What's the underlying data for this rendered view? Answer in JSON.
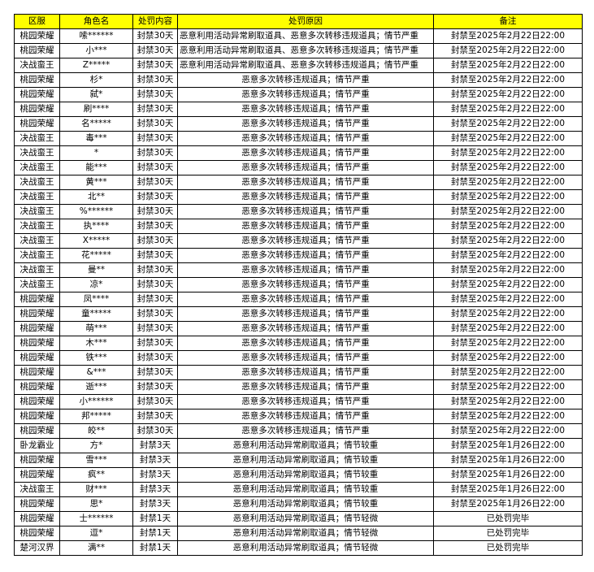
{
  "header_color": "#ffff00",
  "columns": [
    "区服",
    "角色名",
    "处罚内容",
    "处罚原因",
    "备注"
  ],
  "rows": [
    [
      "桃园荣耀",
      "嗦******",
      "封禁30天",
      "恶意利用活动异常刷取道具、恶意多次转移违规道具；情节严重",
      "封禁至2025年2月22日22:00"
    ],
    [
      "桃园荣耀",
      "小***",
      "封禁30天",
      "恶意利用活动异常刷取道具、恶意多次转移违规道具；情节严重",
      "封禁至2025年2月22日22:00"
    ],
    [
      "决战蛮王",
      "Z*****",
      "封禁30天",
      "恶意利用活动异常刷取道具、恶意多次转移违规道具；情节严重",
      "封禁至2025年2月22日22:00"
    ],
    [
      "桃园荣耀",
      "杉*",
      "封禁30天",
      "恶意多次转移违规道具；情节严重",
      "封禁至2025年2月22日22:00"
    ],
    [
      "桃园荣耀",
      "弑*",
      "封禁30天",
      "恶意多次转移违规道具；情节严重",
      "封禁至2025年2月22日22:00"
    ],
    [
      "桃园荣耀",
      "刷****",
      "封禁30天",
      "恶意多次转移违规道具；情节严重",
      "封禁至2025年2月22日22:00"
    ],
    [
      "桃园荣耀",
      "名*****",
      "封禁30天",
      "恶意多次转移违规道具；情节严重",
      "封禁至2025年2月22日22:00"
    ],
    [
      "决战蛮王",
      "毒***",
      "封禁30天",
      "恶意多次转移违规道具；情节严重",
      "封禁至2025年2月22日22:00"
    ],
    [
      "决战蛮王",
      "*",
      "封禁30天",
      "恶意多次转移违规道具；情节严重",
      "封禁至2025年2月22日22:00"
    ],
    [
      "决战蛮王",
      "能***",
      "封禁30天",
      "恶意多次转移违规道具；情节严重",
      "封禁至2025年2月22日22:00"
    ],
    [
      "决战蛮王",
      "黄***",
      "封禁30天",
      "恶意多次转移违规道具；情节严重",
      "封禁至2025年2月22日22:00"
    ],
    [
      "决战蛮王",
      "北**",
      "封禁30天",
      "恶意多次转移违规道具；情节严重",
      "封禁至2025年2月22日22:00"
    ],
    [
      "决战蛮王",
      "%******",
      "封禁30天",
      "恶意多次转移违规道具；情节严重",
      "封禁至2025年2月22日22:00"
    ],
    [
      "决战蛮王",
      "执****",
      "封禁30天",
      "恶意多次转移违规道具；情节严重",
      "封禁至2025年2月22日22:00"
    ],
    [
      "决战蛮王",
      "X*****",
      "封禁30天",
      "恶意多次转移违规道具；情节严重",
      "封禁至2025年2月22日22:00"
    ],
    [
      "决战蛮王",
      "花*****",
      "封禁30天",
      "恶意多次转移违规道具；情节严重",
      "封禁至2025年2月22日22:00"
    ],
    [
      "决战蛮王",
      "曼**",
      "封禁30天",
      "恶意多次转移违规道具；情节严重",
      "封禁至2025年2月22日22:00"
    ],
    [
      "决战蛮王",
      "凉*",
      "封禁30天",
      "恶意多次转移违规道具；情节严重",
      "封禁至2025年2月22日22:00"
    ],
    [
      "桃园荣耀",
      "凤****",
      "封禁30天",
      "恶意多次转移违规道具；情节严重",
      "封禁至2025年2月22日22:00"
    ],
    [
      "桃园荣耀",
      "童*****",
      "封禁30天",
      "恶意多次转移违规道具；情节严重",
      "封禁至2025年2月22日22:00"
    ],
    [
      "桃园荣耀",
      "萌***",
      "封禁30天",
      "恶意多次转移违规道具；情节严重",
      "封禁至2025年2月22日22:00"
    ],
    [
      "桃园荣耀",
      "木***",
      "封禁30天",
      "恶意多次转移违规道具；情节严重",
      "封禁至2025年2月22日22:00"
    ],
    [
      "桃园荣耀",
      "铁***",
      "封禁30天",
      "恶意多次转移违规道具；情节严重",
      "封禁至2025年2月22日22:00"
    ],
    [
      "桃园荣耀",
      "&***",
      "封禁30天",
      "恶意多次转移违规道具；情节严重",
      "封禁至2025年2月22日22:00"
    ],
    [
      "桃园荣耀",
      "逝***",
      "封禁30天",
      "恶意多次转移违规道具；情节严重",
      "封禁至2025年2月22日22:00"
    ],
    [
      "桃园荣耀",
      "小******",
      "封禁30天",
      "恶意多次转移违规道具；情节严重",
      "封禁至2025年2月22日22:00"
    ],
    [
      "桃园荣耀",
      "邦*****",
      "封禁30天",
      "恶意多次转移违规道具；情节严重",
      "封禁至2025年2月22日22:00"
    ],
    [
      "桃园荣耀",
      "皎**",
      "封禁30天",
      "恶意多次转移违规道具；情节严重",
      "封禁至2025年2月22日22:00"
    ],
    [
      "卧龙霸业",
      "方*",
      "封禁3天",
      "恶意利用活动异常刷取道具；情节较重",
      "封禁至2025年1月26日22:00"
    ],
    [
      "桃园荣耀",
      "雪***",
      "封禁3天",
      "恶意利用活动异常刷取道具；情节较重",
      "封禁至2025年1月26日22:00"
    ],
    [
      "桃园荣耀",
      "疯**",
      "封禁3天",
      "恶意利用活动异常刷取道具；情节较重",
      "封禁至2025年1月26日22:00"
    ],
    [
      "决战蛮王",
      "财***",
      "封禁3天",
      "恶意利用活动异常刷取道具；情节较重",
      "封禁至2025年1月26日22:00"
    ],
    [
      "桃园荣耀",
      "思*",
      "封禁3天",
      "恶意利用活动异常刷取道具；情节较重",
      "封禁至2025年1月26日22:00"
    ],
    [
      "桃园荣耀",
      "士******",
      "封禁1天",
      "恶意利用活动异常刷取道具；情节轻微",
      "已处罚完毕"
    ],
    [
      "桃园荣耀",
      "逗*",
      "封禁1天",
      "恶意利用活动异常刷取道具；情节轻微",
      "已处罚完毕"
    ],
    [
      "楚河汉界",
      "满**",
      "封禁1天",
      "恶意利用活动异常刷取道具；情节轻微",
      "已处罚完毕"
    ]
  ]
}
